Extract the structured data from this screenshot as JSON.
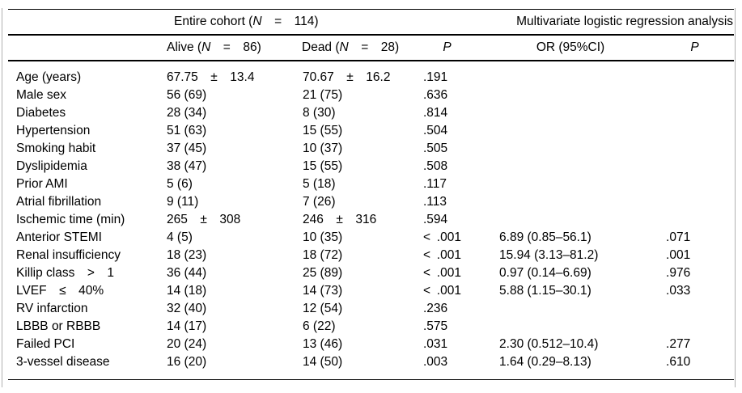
{
  "colors": {
    "background": "#ffffff",
    "text": "#000000",
    "rule": "#000000",
    "frame_edge": "#b0b0b0"
  },
  "table": {
    "header": {
      "entire_cohort": {
        "pre": "Entire cohort (",
        "n": "N",
        "post": " = 114)"
      },
      "multivariate": "Multivariate logistic regression analysis",
      "alive": {
        "pre": "Alive (",
        "n": "N",
        "post": " = 86)"
      },
      "dead": {
        "pre": "Dead (",
        "n": "N",
        "post": " = 28)"
      },
      "p_cohort": "P",
      "or": "OR (95%CI)",
      "p_multivariate": "P"
    },
    "rows": [
      {
        "label": "Age (years)",
        "alive": "67.75 ± 13.4",
        "dead": "70.67 ± 16.2",
        "p": ".191",
        "or": "",
        "p2": ""
      },
      {
        "label": "Male sex",
        "alive": "56 (69)",
        "dead": "21 (75)",
        "p": ".636",
        "or": "",
        "p2": ""
      },
      {
        "label": "Diabetes",
        "alive": "28 (34)",
        "dead": "8 (30)",
        "p": ".814",
        "or": "",
        "p2": ""
      },
      {
        "label": "Hypertension",
        "alive": "51 (63)",
        "dead": "15 (55)",
        "p": ".504",
        "or": "",
        "p2": ""
      },
      {
        "label": "Smoking habit",
        "alive": "37 (45)",
        "dead": "10 (37)",
        "p": ".505",
        "or": "",
        "p2": ""
      },
      {
        "label": "Dyslipidemia",
        "alive": "38 (47)",
        "dead": "15 (55)",
        "p": ".508",
        "or": "",
        "p2": ""
      },
      {
        "label": "Prior AMI",
        "alive": "5 (6)",
        "dead": "5 (18)",
        "p": ".117",
        "or": "",
        "p2": ""
      },
      {
        "label": "Atrial fibrillation",
        "alive": "9 (11)",
        "dead": "7 (26)",
        "p": ".113",
        "or": "",
        "p2": ""
      },
      {
        "label": "Ischemic time (min)",
        "alive": "265 ± 308",
        "dead": "246 ± 316",
        "p": ".594",
        "or": "",
        "p2": ""
      },
      {
        "label": "Anterior STEMI",
        "alive": "4 (5)",
        "dead": "10 (35)",
        "p": "< .001",
        "or": "6.89 (0.85–56.1)",
        "p2": ".071"
      },
      {
        "label": "Renal insufficiency",
        "alive": "18 (23)",
        "dead": "18 (72)",
        "p": "< .001",
        "or": "15.94 (3.13–81.2)",
        "p2": ".001"
      },
      {
        "label": "Killip class > 1",
        "alive": "36 (44)",
        "dead": "25 (89)",
        "p": "< .001",
        "or": "0.97 (0.14–6.69)",
        "p2": ".976"
      },
      {
        "label": "LVEF ≤ 40%",
        "alive": "14 (18)",
        "dead": "14 (73)",
        "p": "< .001",
        "or": "5.88 (1.15–30.1)",
        "p2": ".033"
      },
      {
        "label": "RV infarction",
        "alive": "32 (40)",
        "dead": "12 (54)",
        "p": ".236",
        "or": "",
        "p2": ""
      },
      {
        "label": "LBBB or RBBB",
        "alive": "14 (17)",
        "dead": "6 (22)",
        "p": ".575",
        "or": "",
        "p2": ""
      },
      {
        "label": "Failed PCI",
        "alive": "20 (24)",
        "dead": "13 (46)",
        "p": ".031",
        "or": "2.30 (0.512–10.4)",
        "p2": ".277"
      },
      {
        "label": "3-vessel disease",
        "alive": "16 (20)",
        "dead": "14 (50)",
        "p": ".003",
        "or": "1.64 (0.29–8.13)",
        "p2": ".610"
      }
    ]
  }
}
